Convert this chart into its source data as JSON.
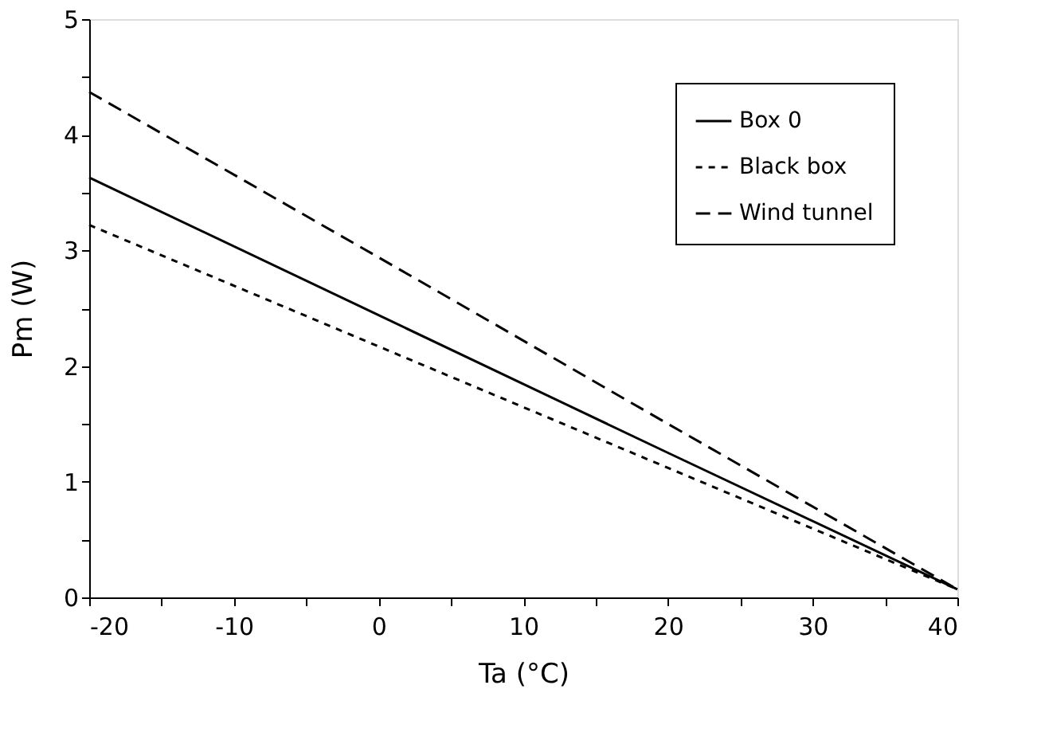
{
  "chart_data": {
    "type": "line",
    "xlabel": "Ta (°C)",
    "ylabel": "Pm (W)",
    "xlim": [
      -20,
      40
    ],
    "ylim": [
      0,
      5
    ],
    "xticks": [
      -20,
      {
        "value": -15,
        "label": null
      },
      -10,
      {
        "value": -5,
        "label": null
      },
      0,
      {
        "value": 5,
        "label": null
      },
      10,
      {
        "value": 15,
        "label": null
      },
      20,
      {
        "value": 25,
        "label": null
      },
      30,
      {
        "value": 35,
        "label": null
      },
      40
    ],
    "yticks": [
      0,
      {
        "value": 0.5,
        "label": null
      },
      1,
      {
        "value": 1.5,
        "label": null
      },
      2,
      {
        "value": 2.5,
        "label": null
      },
      3,
      {
        "value": 3.5,
        "label": null
      },
      4,
      {
        "value": 4.5,
        "label": null
      },
      5
    ],
    "grid": false,
    "legend": "top right",
    "marker": "none",
    "x": [
      -20,
      0,
      20,
      40
    ],
    "series": [
      {
        "name": "Box 0",
        "color": "#000000",
        "line_style": "solid",
        "values": [
          3.63,
          2.44,
          1.25,
          0.07
        ]
      },
      {
        "name": "Black box",
        "color": "#000000",
        "line_style": "dotted",
        "values": [
          3.22,
          2.17,
          1.12,
          0.07
        ]
      },
      {
        "name": "Wind tunnel",
        "color": "#000000",
        "line_style": "dashed",
        "values": [
          4.37,
          2.94,
          1.5,
          0.07
        ]
      }
    ]
  }
}
